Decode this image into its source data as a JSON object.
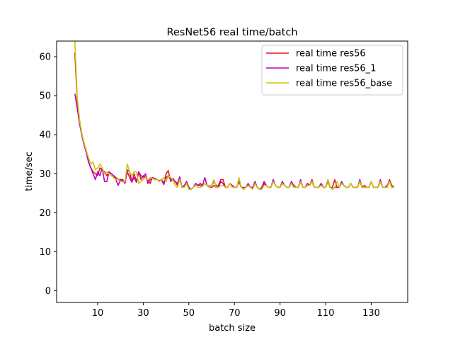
{
  "chart_data": {
    "type": "line",
    "title": "ResNet56 real time/batch",
    "xlabel": "batch size",
    "ylabel": "time/sec",
    "xlim": [
      -8,
      146
    ],
    "ylim": [
      -3,
      64
    ],
    "xticks": [
      10,
      30,
      50,
      70,
      90,
      110,
      130
    ],
    "yticks": [
      0,
      10,
      20,
      30,
      40,
      50,
      60
    ],
    "grid": false,
    "legend_position": "top-right",
    "series": [
      {
        "name": "real time res56",
        "color": "#e31a1c",
        "x": [
          0,
          1,
          2,
          3,
          4,
          5,
          6,
          7,
          8,
          9,
          10,
          11,
          12,
          13,
          14,
          15,
          16,
          17,
          18,
          19,
          20,
          21,
          22,
          23,
          24,
          25,
          26,
          27,
          28,
          29,
          30,
          31,
          32,
          33,
          34,
          35,
          36,
          37,
          38,
          39,
          40,
          41,
          42,
          43,
          44,
          45,
          46,
          47,
          48,
          49,
          50,
          51,
          52,
          53,
          54,
          55,
          56,
          57,
          58,
          59,
          60,
          61,
          62,
          63,
          64,
          65,
          66,
          67,
          68,
          69,
          70,
          71,
          72,
          73,
          74,
          75,
          76,
          77,
          78,
          79,
          80,
          81,
          82,
          83,
          84,
          85,
          86,
          87,
          88,
          89,
          90,
          91,
          92,
          93,
          94,
          95,
          96,
          97,
          98,
          99,
          100,
          101,
          102,
          103,
          104,
          105,
          106,
          107,
          108,
          109,
          110,
          111,
          112,
          113,
          114,
          115,
          116,
          117,
          118,
          119,
          120,
          121,
          122,
          123,
          124,
          125,
          126,
          127,
          128,
          129,
          130,
          131,
          132,
          133,
          134,
          135,
          136,
          137,
          138,
          139,
          140
        ],
        "y": [
          61.0,
          49.0,
          44.0,
          40.0,
          37.5,
          35.5,
          33.0,
          31.5,
          30.5,
          30.0,
          29.5,
          31.5,
          31.0,
          30.5,
          29.5,
          30.5,
          30.0,
          29.5,
          29.0,
          28.5,
          28.5,
          28.0,
          27.8,
          30.5,
          29.0,
          27.8,
          30.0,
          28.0,
          30.5,
          28.5,
          29.5,
          29.0,
          28.5,
          27.5,
          29.0,
          28.5,
          28.5,
          28.0,
          28.5,
          27.5,
          30.0,
          30.8,
          28.0,
          28.5,
          28.0,
          27.0,
          28.5,
          26.5,
          26.5,
          28.0,
          26.5,
          26.0,
          26.5,
          27.5,
          27.0,
          27.0,
          26.8,
          27.5,
          27.0,
          26.5,
          26.5,
          27.0,
          26.5,
          27.0,
          28.5,
          28.5,
          26.5,
          26.5,
          27.5,
          27.0,
          26.5,
          26.5,
          28.0,
          26.5,
          26.0,
          26.5,
          27.0,
          26.5,
          26.5,
          27.5,
          26.5,
          26.0,
          26.0,
          27.5,
          27.0,
          26.5,
          26.5,
          28.0,
          27.0,
          26.5,
          26.5,
          27.5,
          27.0,
          26.5,
          26.5,
          27.5,
          27.0,
          26.5,
          26.5,
          28.0,
          26.5,
          26.5,
          27.0,
          27.0,
          28.5,
          26.5,
          26.5,
          26.5,
          27.5,
          26.5,
          26.5,
          28.0,
          26.5,
          26.5,
          28.5,
          26.5,
          26.5,
          27.5,
          27.0,
          26.5,
          26.5,
          27.5,
          26.5,
          26.5,
          26.5,
          28.0,
          26.5,
          27.0,
          26.5,
          26.5,
          28.0,
          26.5,
          26.5,
          26.5,
          28.0,
          26.5,
          26.5,
          26.5,
          28.5,
          27.0,
          26.5
        ]
      },
      {
        "name": "real time res56_1",
        "color": "#bf00bf",
        "x": [
          0,
          1,
          2,
          3,
          4,
          5,
          6,
          7,
          8,
          9,
          10,
          11,
          12,
          13,
          14,
          15,
          16,
          17,
          18,
          19,
          20,
          21,
          22,
          23,
          24,
          25,
          26,
          27,
          28,
          29,
          30,
          31,
          32,
          33,
          34,
          35,
          36,
          37,
          38,
          39,
          40,
          41,
          42,
          43,
          44,
          45,
          46,
          47,
          48,
          49,
          50,
          51,
          52,
          53,
          54,
          55,
          56,
          57,
          58,
          59,
          60,
          61,
          62,
          63,
          64,
          65,
          66,
          67,
          68,
          69,
          70,
          71,
          72,
          73,
          74,
          75,
          76,
          77,
          78,
          79,
          80,
          81,
          82,
          83,
          84,
          85,
          86,
          87,
          88,
          89,
          90,
          91,
          92,
          93,
          94,
          95,
          96,
          97,
          98,
          99,
          100,
          101,
          102,
          103,
          104,
          105,
          106,
          107,
          108,
          109,
          110,
          111,
          112,
          113,
          114,
          115,
          116,
          117,
          118,
          119,
          120,
          121,
          122,
          123,
          124,
          125,
          126,
          127,
          128,
          129,
          130,
          131,
          132,
          133,
          134,
          135,
          136,
          137,
          138,
          139,
          140
        ],
        "y": [
          50.5,
          47.0,
          43.0,
          40.0,
          37.5,
          35.5,
          33.0,
          31.5,
          30.0,
          28.5,
          30.5,
          29.5,
          31.5,
          28.0,
          28.0,
          30.5,
          30.0,
          29.5,
          28.5,
          27.0,
          28.5,
          28.5,
          27.5,
          31.0,
          30.5,
          28.0,
          29.0,
          27.8,
          30.5,
          29.5,
          29.0,
          30.0,
          27.5,
          28.5,
          29.0,
          28.8,
          28.5,
          28.2,
          28.5,
          27.2,
          29.0,
          29.5,
          28.5,
          28.8,
          28.0,
          27.5,
          29.2,
          26.5,
          27.0,
          28.0,
          26.5,
          26.0,
          26.5,
          27.5,
          27.0,
          27.5,
          27.0,
          29.0,
          27.0,
          26.8,
          27.0,
          28.0,
          27.0,
          26.5,
          28.0,
          27.5,
          26.5,
          26.5,
          27.5,
          27.0,
          26.5,
          26.5,
          28.5,
          26.5,
          26.5,
          26.5,
          27.5,
          26.5,
          26.5,
          28.0,
          26.5,
          26.0,
          26.5,
          28.0,
          27.0,
          26.5,
          26.5,
          28.5,
          27.0,
          26.5,
          26.5,
          28.0,
          27.0,
          26.5,
          26.5,
          28.0,
          27.0,
          26.5,
          26.5,
          28.5,
          26.5,
          26.5,
          27.5,
          27.0,
          28.0,
          26.5,
          26.5,
          26.5,
          27.5,
          26.5,
          26.5,
          28.5,
          26.5,
          26.0,
          26.5,
          26.5,
          26.5,
          28.0,
          27.0,
          26.5,
          26.5,
          27.5,
          26.5,
          26.5,
          26.5,
          28.5,
          26.5,
          26.5,
          26.5,
          26.5,
          28.0,
          26.5,
          26.5,
          26.5,
          28.5,
          26.5,
          26.5,
          27.0,
          28.0,
          26.5,
          26.5
        ]
      },
      {
        "name": "real time res56_base",
        "color": "#c8c800",
        "x": [
          0,
          1,
          2,
          3,
          4,
          5,
          6,
          7,
          8,
          9,
          10,
          11,
          12,
          13,
          14,
          15,
          16,
          17,
          18,
          19,
          20,
          21,
          22,
          23,
          24,
          25,
          26,
          27,
          28,
          29,
          30,
          31,
          32,
          33,
          34,
          35,
          36,
          37,
          38,
          39,
          40,
          41,
          42,
          43,
          44,
          45,
          46,
          47,
          48,
          49,
          50,
          51,
          52,
          53,
          54,
          55,
          56,
          57,
          58,
          59,
          60,
          61,
          62,
          63,
          64,
          65,
          66,
          67,
          68,
          69,
          70,
          71,
          72,
          73,
          74,
          75,
          76,
          77,
          78,
          79,
          80,
          81,
          82,
          83,
          84,
          85,
          86,
          87,
          88,
          89,
          90,
          91,
          92,
          93,
          94,
          95,
          96,
          97,
          98,
          99,
          100,
          101,
          102,
          103,
          104,
          105,
          106,
          107,
          108,
          109,
          110,
          111,
          112,
          113,
          114,
          115,
          116,
          117,
          118,
          119,
          120,
          121,
          122,
          123,
          124,
          125,
          126,
          127,
          128,
          129,
          130,
          131,
          132,
          133,
          134,
          135,
          136,
          137,
          138,
          139,
          140
        ],
        "y": [
          64.0,
          50.0,
          44.0,
          40.5,
          38.0,
          36.0,
          34.0,
          32.5,
          33.0,
          31.0,
          31.5,
          32.5,
          31.5,
          30.0,
          30.5,
          30.0,
          29.5,
          29.0,
          28.5,
          28.5,
          28.0,
          28.0,
          28.0,
          32.5,
          30.5,
          29.5,
          30.5,
          30.5,
          27.5,
          28.0,
          28.5,
          29.0,
          28.5,
          29.0,
          28.8,
          28.5,
          28.5,
          28.0,
          28.5,
          29.0,
          28.0,
          29.5,
          29.0,
          28.5,
          27.0,
          26.5,
          28.5,
          26.5,
          26.5,
          27.5,
          26.0,
          26.0,
          26.5,
          27.0,
          26.5,
          26.5,
          26.8,
          27.5,
          27.0,
          26.5,
          27.0,
          28.5,
          26.5,
          26.5,
          27.0,
          27.0,
          26.5,
          26.5,
          27.5,
          26.5,
          26.5,
          26.5,
          29.0,
          26.5,
          26.0,
          26.5,
          27.0,
          26.5,
          26.0,
          27.5,
          26.5,
          26.0,
          26.0,
          27.0,
          27.0,
          26.5,
          26.5,
          28.0,
          27.0,
          26.5,
          26.5,
          27.5,
          27.0,
          26.5,
          26.5,
          27.5,
          26.5,
          26.5,
          26.5,
          28.0,
          26.5,
          26.5,
          27.0,
          27.0,
          28.0,
          26.5,
          26.5,
          26.5,
          27.0,
          26.5,
          26.5,
          28.5,
          26.5,
          26.0,
          26.5,
          28.0,
          26.5,
          27.5,
          27.0,
          26.5,
          26.5,
          27.5,
          26.5,
          26.5,
          26.5,
          28.0,
          26.5,
          26.5,
          26.5,
          26.5,
          28.0,
          26.5,
          26.5,
          26.5,
          28.0,
          26.5,
          26.5,
          26.5,
          28.0,
          26.5,
          26.5
        ]
      }
    ]
  }
}
